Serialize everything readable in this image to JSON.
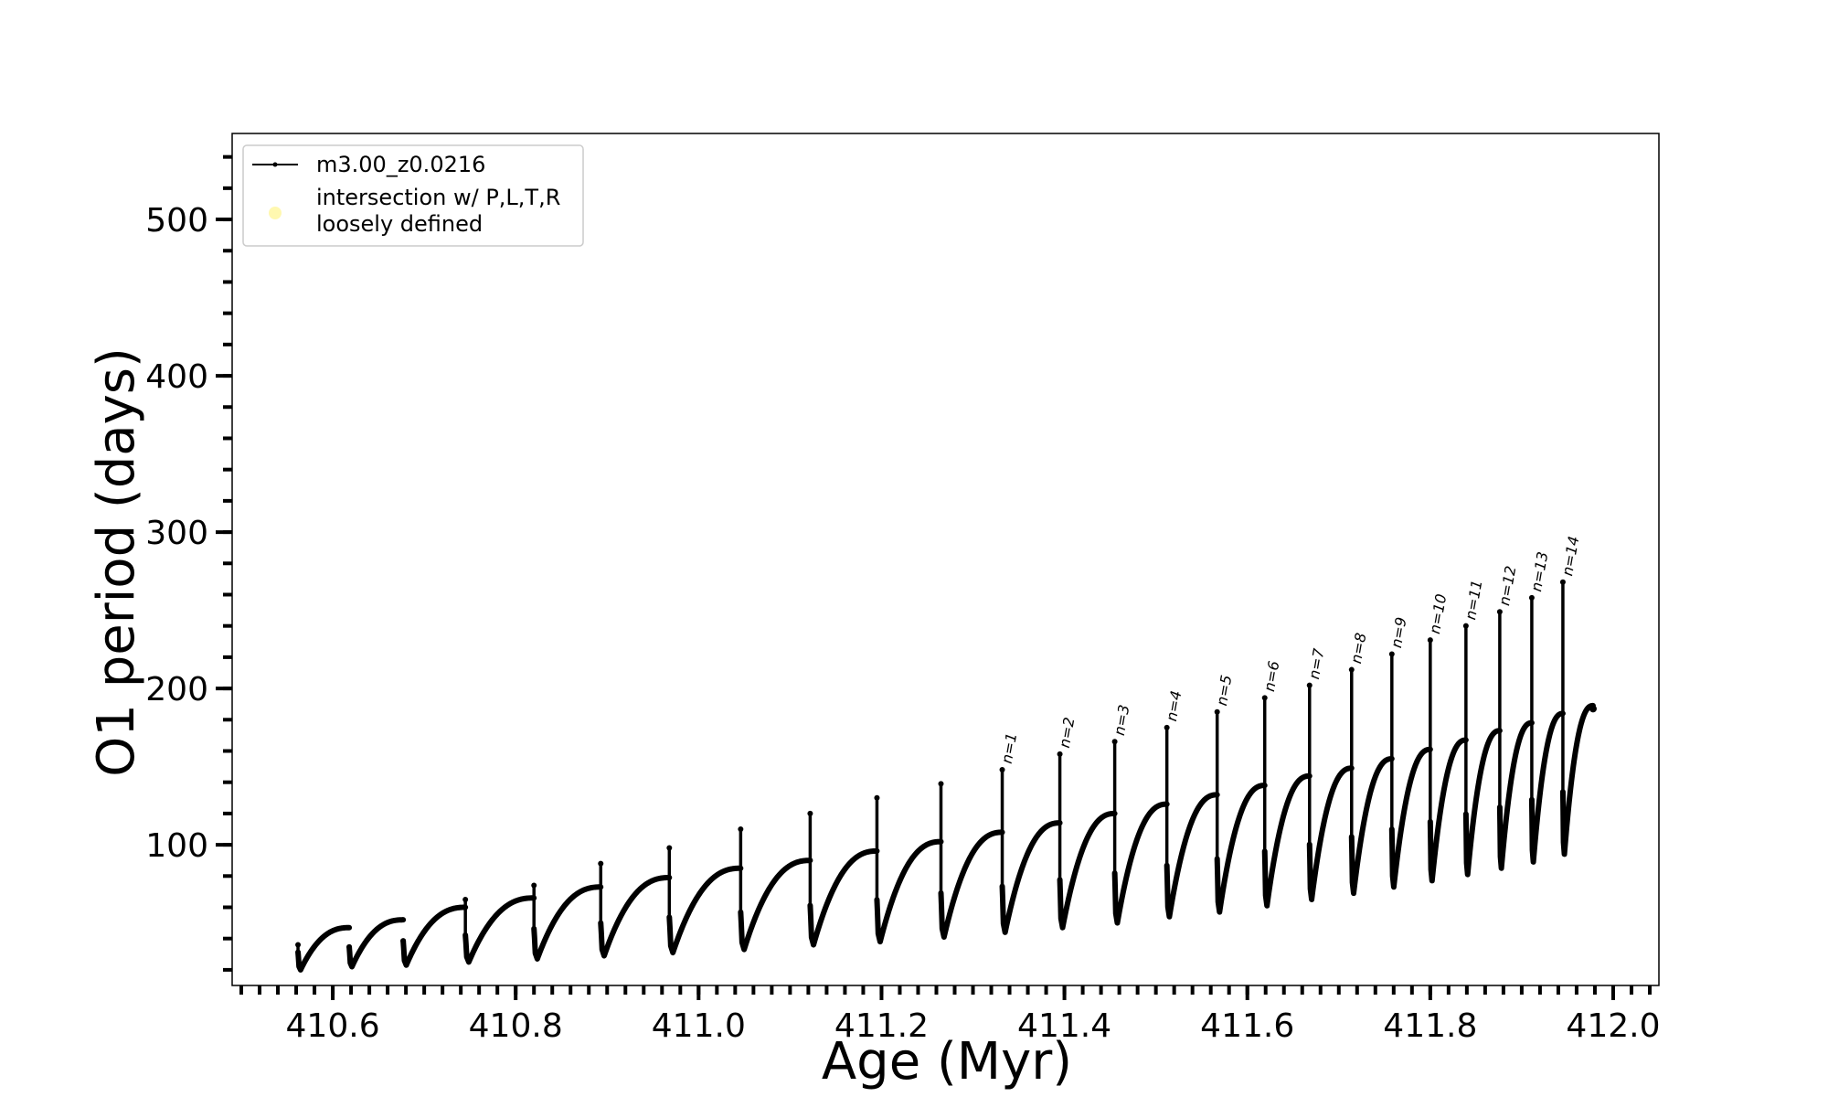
{
  "chart_data": {
    "type": "line",
    "title": "",
    "xlabel": "Age (Myr)",
    "ylabel": "O1 period (days)",
    "xlim": [
      410.49,
      412.05
    ],
    "ylim": [
      10,
      555
    ],
    "x_ticks": [
      410.6,
      410.8,
      411.0,
      411.2,
      411.4,
      411.6,
      411.8,
      412.0
    ],
    "x_tick_labels": [
      "410.6",
      "410.8",
      "411.0",
      "411.2",
      "411.4",
      "411.6",
      "411.8",
      "412.0"
    ],
    "x_minor_step": 0.02,
    "y_ticks": [
      100,
      200,
      300,
      400,
      500
    ],
    "y_tick_labels": [
      "100",
      "200",
      "300",
      "400",
      "500"
    ],
    "y_minor_step": 20,
    "grid": false,
    "legend": {
      "placement": "top-left",
      "entries": [
        {
          "label": "m3.00_z0.0216",
          "marker": "line-dot",
          "color": "#000000"
        },
        {
          "label_lines": [
            "intersection w/ P,L,T,R",
            "loosely defined"
          ],
          "marker": "circle",
          "color": "#fff8b0"
        }
      ]
    },
    "series": [
      {
        "name": "m3.00_z0.0216",
        "color": "#000000",
        "cycles": [
          {
            "start": 410.562,
            "end": 410.618,
            "min": 20,
            "max": 47,
            "spike": 36
          },
          {
            "start": 410.618,
            "end": 410.677,
            "min": 22,
            "max": 52,
            "spike": 30
          },
          {
            "start": 410.677,
            "end": 410.745,
            "min": 23,
            "max": 60,
            "spike": 33
          },
          {
            "start": 410.745,
            "end": 410.82,
            "min": 25,
            "max": 66,
            "spike": 65
          },
          {
            "start": 410.82,
            "end": 410.893,
            "min": 27,
            "max": 73,
            "spike": 74
          },
          {
            "start": 410.893,
            "end": 410.968,
            "min": 29,
            "max": 79,
            "spike": 88
          },
          {
            "start": 410.968,
            "end": 411.046,
            "min": 31,
            "max": 85,
            "spike": 98
          },
          {
            "start": 411.046,
            "end": 411.122,
            "min": 33,
            "max": 90,
            "spike": 110
          },
          {
            "start": 411.122,
            "end": 411.195,
            "min": 36,
            "max": 96,
            "spike": 120
          },
          {
            "start": 411.195,
            "end": 411.265,
            "min": 38,
            "max": 102,
            "spike": 130
          },
          {
            "start": 411.265,
            "end": 411.332,
            "min": 41,
            "max": 108,
            "spike": 139
          },
          {
            "start": 411.332,
            "end": 411.395,
            "min": 44,
            "max": 114,
            "spike": 148
          },
          {
            "start": 411.395,
            "end": 411.455,
            "min": 47,
            "max": 120,
            "spike": 158
          },
          {
            "start": 411.455,
            "end": 411.512,
            "min": 50,
            "max": 126,
            "spike": 166
          },
          {
            "start": 411.512,
            "end": 411.567,
            "min": 54,
            "max": 132,
            "spike": 175
          },
          {
            "start": 411.567,
            "end": 411.619,
            "min": 57,
            "max": 138,
            "spike": 185
          },
          {
            "start": 411.619,
            "end": 411.668,
            "min": 61,
            "max": 144,
            "spike": 194
          },
          {
            "start": 411.668,
            "end": 411.714,
            "min": 65,
            "max": 149,
            "spike": 202
          },
          {
            "start": 411.714,
            "end": 411.758,
            "min": 69,
            "max": 155,
            "spike": 212
          },
          {
            "start": 411.758,
            "end": 411.8,
            "min": 73,
            "max": 161,
            "spike": 222
          },
          {
            "start": 411.8,
            "end": 411.839,
            "min": 77,
            "max": 167,
            "spike": 231
          },
          {
            "start": 411.839,
            "end": 411.876,
            "min": 81,
            "max": 173,
            "spike": 240
          },
          {
            "start": 411.876,
            "end": 411.911,
            "min": 85,
            "max": 178,
            "spike": 249
          },
          {
            "start": 411.911,
            "end": 411.945,
            "min": 89,
            "max": 184,
            "spike": 258
          },
          {
            "start": 411.945,
            "end": 411.978,
            "min": 94,
            "max": 189,
            "spike": 268
          }
        ]
      }
    ],
    "pulse_annotations": [
      {
        "label": "n=1",
        "x": 411.332,
        "y": 148
      },
      {
        "label": "n=2",
        "x": 411.395,
        "y": 158
      },
      {
        "label": "n=3",
        "x": 411.455,
        "y": 166
      },
      {
        "label": "n=4",
        "x": 411.512,
        "y": 175
      },
      {
        "label": "n=5",
        "x": 411.567,
        "y": 185
      },
      {
        "label": "n=6",
        "x": 411.619,
        "y": 194
      },
      {
        "label": "n=7",
        "x": 411.668,
        "y": 202
      },
      {
        "label": "n=8",
        "x": 411.714,
        "y": 212
      },
      {
        "label": "n=9",
        "x": 411.758,
        "y": 222
      },
      {
        "label": "n=10",
        "x": 411.8,
        "y": 231
      },
      {
        "label": "n=11",
        "x": 411.839,
        "y": 240
      },
      {
        "label": "n=12",
        "x": 411.876,
        "y": 249
      },
      {
        "label": "n=13",
        "x": 411.911,
        "y": 258
      },
      {
        "label": "n=14",
        "x": 411.945,
        "y": 268
      }
    ]
  }
}
